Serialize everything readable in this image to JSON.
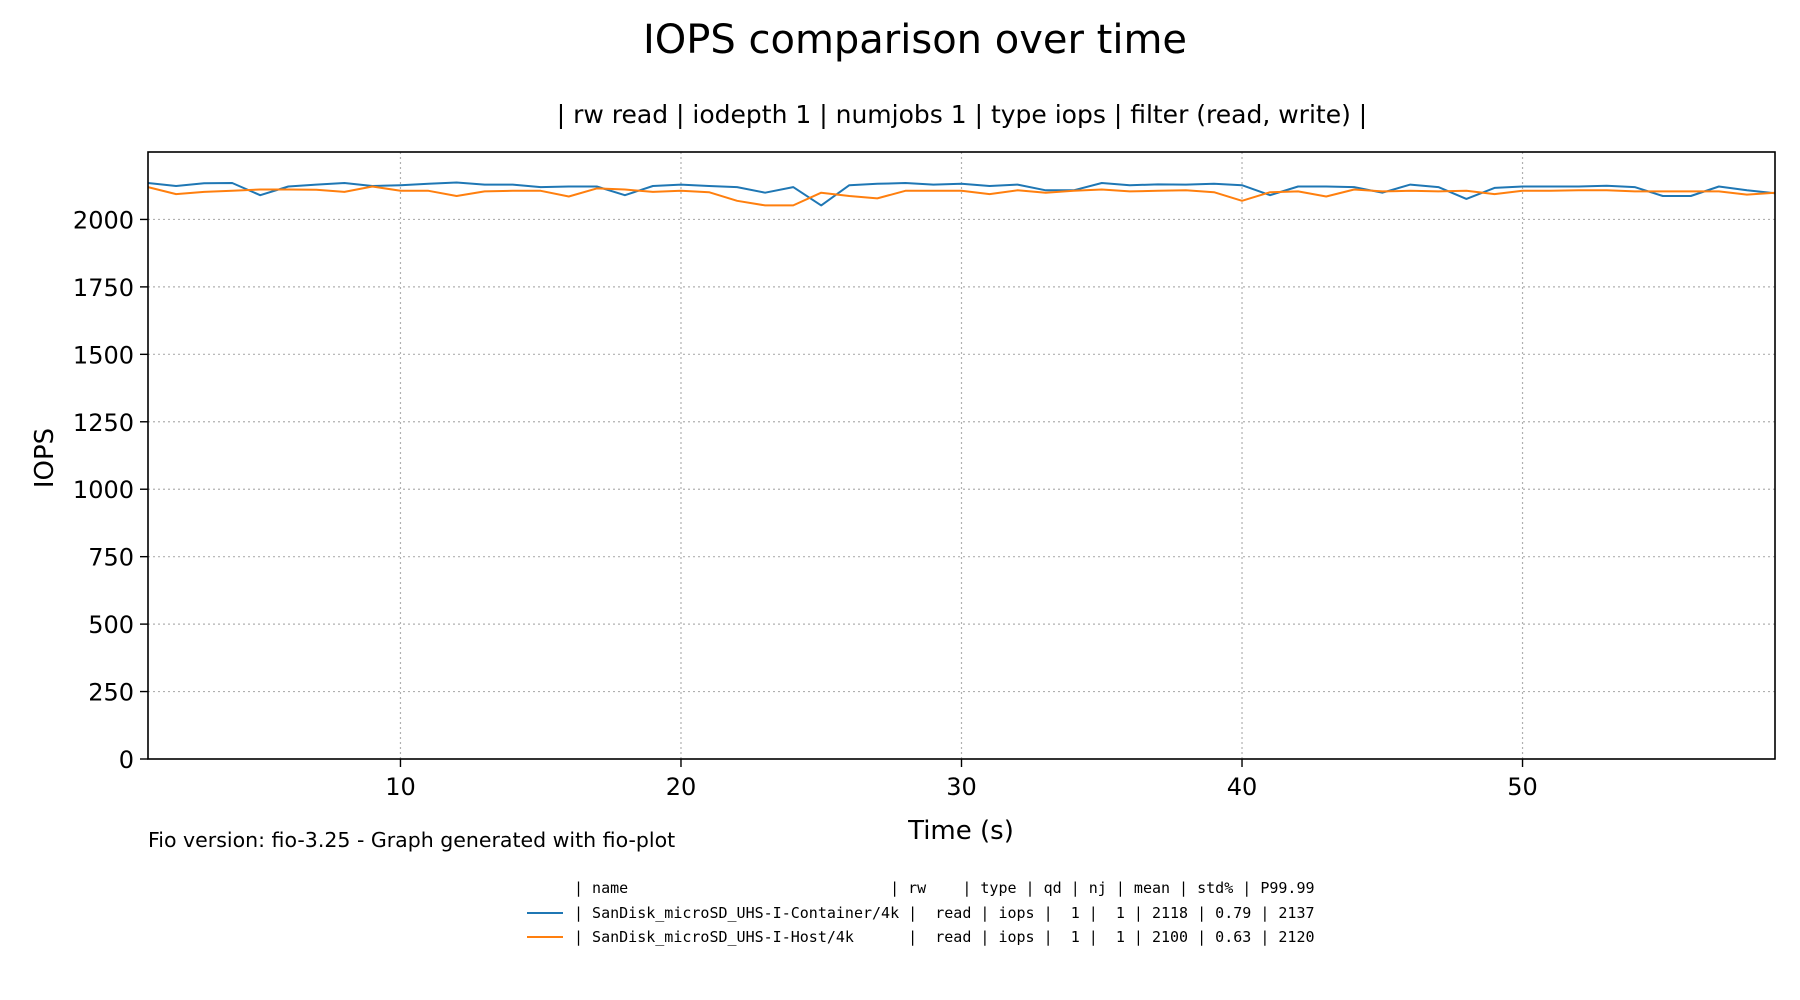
{
  "chart_data": {
    "type": "line",
    "title": "IOPS comparison over time",
    "subtitle": "| rw read | iodepth 1 | numjobs 1 | type iops | filter (read, write) |",
    "xlabel": "Time (s)",
    "ylabel": "IOPS",
    "xlim": [
      1,
      59
    ],
    "ylim": [
      0,
      2250
    ],
    "xticks": [
      10,
      20,
      30,
      40,
      50
    ],
    "yticks": [
      0,
      250,
      500,
      750,
      1000,
      1250,
      1500,
      1750,
      2000
    ],
    "grid": true,
    "x": [
      1,
      2,
      3,
      4,
      5,
      6,
      7,
      8,
      9,
      10,
      11,
      12,
      13,
      14,
      15,
      16,
      17,
      18,
      19,
      20,
      21,
      22,
      23,
      24,
      25,
      26,
      27,
      28,
      29,
      30,
      31,
      32,
      33,
      34,
      35,
      36,
      37,
      38,
      39,
      40,
      41,
      42,
      43,
      44,
      45,
      46,
      47,
      48,
      49,
      50,
      51,
      52,
      53,
      54,
      55,
      56,
      57,
      58,
      59
    ],
    "series": [
      {
        "color": "#1f77b4",
        "values": [
          2135,
          2124,
          2134,
          2135,
          2090,
          2122,
          2129,
          2135,
          2124,
          2127,
          2132,
          2137,
          2129,
          2129,
          2120,
          2122,
          2122,
          2090,
          2124,
          2129,
          2124,
          2120,
          2099,
          2120,
          2052,
          2127,
          2132,
          2135,
          2129,
          2132,
          2124,
          2129,
          2108,
          2108,
          2135,
          2127,
          2130,
          2129,
          2132,
          2127,
          2090,
          2122,
          2122,
          2120,
          2099,
          2129,
          2120,
          2076,
          2117,
          2122,
          2122,
          2122,
          2125,
          2120,
          2087,
          2087,
          2122,
          2108,
          2097
        ]
      },
      {
        "color": "#ff7f0e",
        "values": [
          2120,
          2094,
          2102,
          2106,
          2111,
          2111,
          2110,
          2102,
          2122,
          2106,
          2106,
          2087,
          2104,
          2106,
          2106,
          2085,
          2115,
          2111,
          2102,
          2106,
          2101,
          2069,
          2052,
          2052,
          2099,
          2087,
          2078,
          2106,
          2106,
          2106,
          2094,
          2108,
          2099,
          2106,
          2111,
          2104,
          2106,
          2108,
          2101,
          2069,
          2101,
          2104,
          2085,
          2111,
          2104,
          2106,
          2104,
          2106,
          2094,
          2106,
          2106,
          2108,
          2108,
          2104,
          2104,
          2104,
          2104,
          2092,
          2099
        ]
      }
    ]
  },
  "footer_note": "Fio version: fio-3.25 - Graph generated with fio-plot",
  "legend": {
    "header": "| name                             | rw    | type | qd | nj | mean | std% | P99.99",
    "rows": [
      "| SanDisk_microSD_UHS-I-Container/4k |  read | iops |  1 |  1 | 2118 | 0.79 | 2137",
      "| SanDisk_microSD_UHS-I-Host/4k      |  read | iops |  1 |  1 | 2100 | 0.63 | 2120"
    ]
  }
}
